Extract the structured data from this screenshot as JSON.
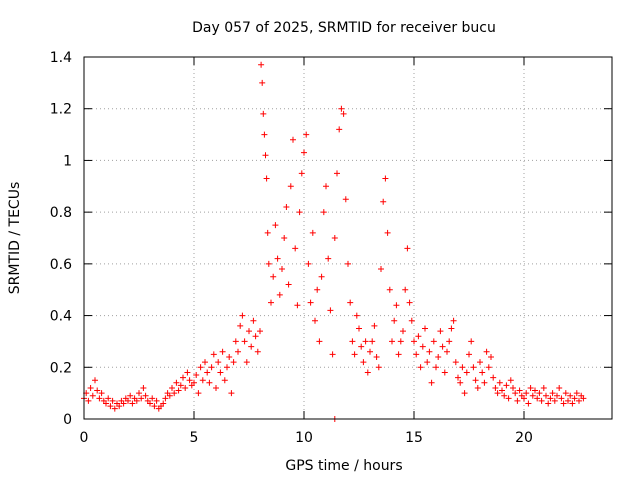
{
  "chart_data": {
    "type": "scatter",
    "title": "Day 057 of 2025, SRMTID for receiver bucu",
    "xlabel": "GPS time / hours",
    "ylabel": "SRMTID / TECUs",
    "xlim": [
      0,
      24
    ],
    "ylim": [
      0,
      1.4
    ],
    "xticks": [
      0,
      5,
      10,
      15,
      20
    ],
    "xtick_labels": [
      "0",
      "5",
      "10",
      "15",
      "20"
    ],
    "yticks": [
      0,
      0.2,
      0.4,
      0.6,
      0.8,
      1.0,
      1.2,
      1.4
    ],
    "ytick_labels": [
      "0",
      "0.2",
      "0.4",
      "0.6",
      "0.8",
      "1",
      "1.2",
      "1.4"
    ],
    "grid": true,
    "marker": "plus",
    "series": [
      {
        "name": "SRMTID",
        "color": "#ff0000",
        "points": [
          [
            0.0,
            0.08
          ],
          [
            0.1,
            0.1
          ],
          [
            0.2,
            0.07
          ],
          [
            0.3,
            0.12
          ],
          [
            0.4,
            0.09
          ],
          [
            0.5,
            0.15
          ],
          [
            0.6,
            0.11
          ],
          [
            0.7,
            0.08
          ],
          [
            0.8,
            0.1
          ],
          [
            0.9,
            0.07
          ],
          [
            1.0,
            0.06
          ],
          [
            1.1,
            0.08
          ],
          [
            1.2,
            0.05
          ],
          [
            1.3,
            0.07
          ],
          [
            1.4,
            0.04
          ],
          [
            1.5,
            0.06
          ],
          [
            1.6,
            0.05
          ],
          [
            1.7,
            0.07
          ],
          [
            1.8,
            0.06
          ],
          [
            1.9,
            0.08
          ],
          [
            2.0,
            0.07
          ],
          [
            2.1,
            0.09
          ],
          [
            2.2,
            0.06
          ],
          [
            2.3,
            0.08
          ],
          [
            2.4,
            0.07
          ],
          [
            2.5,
            0.1
          ],
          [
            2.6,
            0.08
          ],
          [
            2.7,
            0.12
          ],
          [
            2.8,
            0.09
          ],
          [
            2.9,
            0.07
          ],
          [
            3.0,
            0.06
          ],
          [
            3.1,
            0.08
          ],
          [
            3.2,
            0.05
          ],
          [
            3.3,
            0.07
          ],
          [
            3.4,
            0.04
          ],
          [
            3.5,
            0.05
          ],
          [
            3.6,
            0.06
          ],
          [
            3.7,
            0.08
          ],
          [
            3.8,
            0.1
          ],
          [
            3.9,
            0.09
          ],
          [
            4.0,
            0.12
          ],
          [
            4.1,
            0.1
          ],
          [
            4.2,
            0.14
          ],
          [
            4.3,
            0.11
          ],
          [
            4.4,
            0.13
          ],
          [
            4.5,
            0.16
          ],
          [
            4.6,
            0.12
          ],
          [
            4.7,
            0.18
          ],
          [
            4.8,
            0.15
          ],
          [
            4.9,
            0.13
          ],
          [
            5.0,
            0.14
          ],
          [
            5.1,
            0.17
          ],
          [
            5.2,
            0.1
          ],
          [
            5.3,
            0.2
          ],
          [
            5.4,
            0.15
          ],
          [
            5.5,
            0.22
          ],
          [
            5.6,
            0.18
          ],
          [
            5.7,
            0.14
          ],
          [
            5.8,
            0.2
          ],
          [
            5.9,
            0.25
          ],
          [
            6.0,
            0.12
          ],
          [
            6.1,
            0.22
          ],
          [
            6.2,
            0.18
          ],
          [
            6.3,
            0.26
          ],
          [
            6.4,
            0.15
          ],
          [
            6.5,
            0.2
          ],
          [
            6.6,
            0.24
          ],
          [
            6.7,
            0.1
          ],
          [
            6.8,
            0.22
          ],
          [
            6.9,
            0.3
          ],
          [
            7.0,
            0.26
          ],
          [
            7.1,
            0.36
          ],
          [
            7.2,
            0.4
          ],
          [
            7.3,
            0.3
          ],
          [
            7.4,
            0.22
          ],
          [
            7.5,
            0.34
          ],
          [
            7.6,
            0.28
          ],
          [
            7.7,
            0.38
          ],
          [
            7.8,
            0.32
          ],
          [
            7.9,
            0.26
          ],
          [
            8.0,
            0.34
          ],
          [
            8.05,
            1.37
          ],
          [
            8.1,
            1.3
          ],
          [
            8.15,
            1.18
          ],
          [
            8.2,
            1.1
          ],
          [
            8.25,
            1.02
          ],
          [
            8.3,
            0.93
          ],
          [
            8.35,
            0.72
          ],
          [
            8.4,
            0.6
          ],
          [
            8.5,
            0.45
          ],
          [
            8.6,
            0.55
          ],
          [
            8.7,
            0.75
          ],
          [
            8.8,
            0.62
          ],
          [
            8.9,
            0.48
          ],
          [
            9.0,
            0.58
          ],
          [
            9.1,
            0.7
          ],
          [
            9.2,
            0.82
          ],
          [
            9.3,
            0.52
          ],
          [
            9.4,
            0.9
          ],
          [
            9.5,
            1.08
          ],
          [
            9.6,
            0.66
          ],
          [
            9.7,
            0.44
          ],
          [
            9.8,
            0.8
          ],
          [
            9.9,
            0.95
          ],
          [
            10.0,
            1.03
          ],
          [
            10.1,
            1.1
          ],
          [
            10.2,
            0.6
          ],
          [
            10.3,
            0.45
          ],
          [
            10.4,
            0.72
          ],
          [
            10.5,
            0.38
          ],
          [
            10.6,
            0.5
          ],
          [
            10.7,
            0.3
          ],
          [
            10.8,
            0.55
          ],
          [
            10.9,
            0.8
          ],
          [
            11.0,
            0.9
          ],
          [
            11.1,
            0.62
          ],
          [
            11.2,
            0.42
          ],
          [
            11.3,
            0.25
          ],
          [
            11.4,
            0.7
          ],
          [
            11.5,
            0.95
          ],
          [
            11.6,
            1.12
          ],
          [
            11.7,
            1.2
          ],
          [
            11.8,
            1.18
          ],
          [
            11.9,
            0.85
          ],
          [
            12.0,
            0.6
          ],
          [
            12.1,
            0.45
          ],
          [
            12.2,
            0.3
          ],
          [
            12.3,
            0.25
          ],
          [
            12.4,
            0.4
          ],
          [
            12.5,
            0.35
          ],
          [
            12.6,
            0.28
          ],
          [
            12.7,
            0.22
          ],
          [
            12.8,
            0.3
          ],
          [
            12.9,
            0.18
          ],
          [
            13.0,
            0.26
          ],
          [
            13.1,
            0.3
          ],
          [
            13.2,
            0.36
          ],
          [
            13.3,
            0.24
          ],
          [
            13.4,
            0.2
          ],
          [
            13.5,
            0.58
          ],
          [
            13.6,
            0.84
          ],
          [
            13.7,
            0.93
          ],
          [
            13.8,
            0.72
          ],
          [
            13.9,
            0.5
          ],
          [
            14.0,
            0.3
          ],
          [
            14.1,
            0.38
          ],
          [
            14.2,
            0.44
          ],
          [
            14.3,
            0.25
          ],
          [
            14.4,
            0.3
          ],
          [
            14.5,
            0.34
          ],
          [
            14.6,
            0.5
          ],
          [
            14.7,
            0.66
          ],
          [
            14.8,
            0.45
          ],
          [
            14.9,
            0.38
          ],
          [
            15.0,
            0.3
          ],
          [
            15.1,
            0.25
          ],
          [
            15.2,
            0.32
          ],
          [
            15.3,
            0.2
          ],
          [
            15.4,
            0.28
          ],
          [
            15.5,
            0.35
          ],
          [
            15.6,
            0.22
          ],
          [
            15.7,
            0.26
          ],
          [
            15.8,
            0.14
          ],
          [
            15.9,
            0.3
          ],
          [
            16.0,
            0.2
          ],
          [
            16.1,
            0.24
          ],
          [
            16.2,
            0.34
          ],
          [
            16.3,
            0.28
          ],
          [
            16.4,
            0.18
          ],
          [
            16.5,
            0.26
          ],
          [
            16.6,
            0.3
          ],
          [
            16.7,
            0.35
          ],
          [
            16.8,
            0.38
          ],
          [
            16.9,
            0.22
          ],
          [
            17.0,
            0.16
          ],
          [
            17.1,
            0.14
          ],
          [
            17.2,
            0.2
          ],
          [
            17.3,
            0.1
          ],
          [
            17.4,
            0.18
          ],
          [
            17.5,
            0.25
          ],
          [
            17.6,
            0.3
          ],
          [
            17.7,
            0.2
          ],
          [
            17.8,
            0.15
          ],
          [
            17.9,
            0.12
          ],
          [
            18.0,
            0.22
          ],
          [
            18.1,
            0.18
          ],
          [
            18.2,
            0.14
          ],
          [
            18.3,
            0.26
          ],
          [
            18.4,
            0.2
          ],
          [
            18.5,
            0.24
          ],
          [
            18.6,
            0.16
          ],
          [
            18.7,
            0.12
          ],
          [
            18.8,
            0.1
          ],
          [
            18.9,
            0.14
          ],
          [
            19.0,
            0.11
          ],
          [
            19.1,
            0.09
          ],
          [
            19.2,
            0.13
          ],
          [
            19.3,
            0.08
          ],
          [
            19.4,
            0.15
          ],
          [
            19.5,
            0.12
          ],
          [
            19.6,
            0.1
          ],
          [
            19.7,
            0.07
          ],
          [
            19.8,
            0.11
          ],
          [
            19.9,
            0.09
          ],
          [
            20.0,
            0.08
          ],
          [
            20.1,
            0.1
          ],
          [
            20.2,
            0.06
          ],
          [
            20.3,
            0.12
          ],
          [
            20.4,
            0.09
          ],
          [
            20.5,
            0.11
          ],
          [
            20.6,
            0.08
          ],
          [
            20.7,
            0.1
          ],
          [
            20.8,
            0.07
          ],
          [
            20.9,
            0.12
          ],
          [
            21.0,
            0.09
          ],
          [
            21.1,
            0.06
          ],
          [
            21.2,
            0.08
          ],
          [
            21.3,
            0.1
          ],
          [
            21.4,
            0.07
          ],
          [
            21.5,
            0.09
          ],
          [
            21.6,
            0.12
          ],
          [
            21.7,
            0.08
          ],
          [
            21.8,
            0.06
          ],
          [
            21.9,
            0.1
          ],
          [
            22.0,
            0.07
          ],
          [
            22.1,
            0.09
          ],
          [
            22.2,
            0.06
          ],
          [
            22.3,
            0.08
          ],
          [
            22.4,
            0.1
          ],
          [
            22.5,
            0.07
          ],
          [
            22.6,
            0.09
          ],
          [
            22.7,
            0.08
          ],
          [
            11.4,
            0.0
          ]
        ]
      }
    ]
  }
}
